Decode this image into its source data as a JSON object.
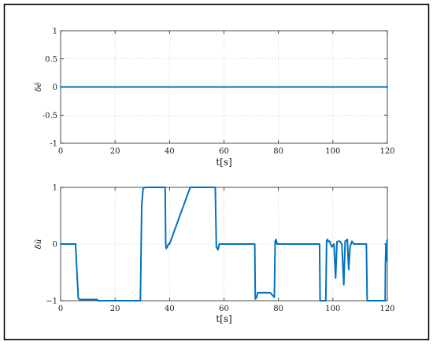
{
  "colors": {
    "series": "#0072BD",
    "frame": "#000000"
  },
  "chart_data": [
    {
      "type": "line",
      "xlabel": "t[s]",
      "ylabel": "δẽ",
      "xlim": [
        0,
        120
      ],
      "ylim": [
        -1,
        1
      ],
      "xticks": [
        0,
        20,
        40,
        60,
        80,
        100,
        120
      ],
      "yticks": [
        -1,
        -0.5,
        0,
        0.5,
        1
      ],
      "ytick_labels": [
        "-1",
        "-0.5",
        "0",
        "0.5",
        "1"
      ],
      "grid": true,
      "series": [
        {
          "x": [
            0,
            120
          ],
          "y": [
            0,
            0
          ]
        }
      ]
    },
    {
      "type": "line",
      "xlabel": "t[s]",
      "ylabel": "δũ",
      "xlim": [
        0,
        120
      ],
      "ylim": [
        -1,
        1
      ],
      "xticks": [
        0,
        20,
        40,
        60,
        80,
        100,
        120
      ],
      "yticks": [
        -1,
        0,
        1
      ],
      "ytick_labels": [
        "−1",
        "0",
        "1"
      ],
      "grid": true,
      "series": [
        {
          "x": [
            0,
            5.5,
            6.0,
            6.5,
            7.0,
            13.5,
            13.7,
            29.3,
            29.8,
            30.3,
            31,
            38.4,
            38.6,
            38.8,
            39.2,
            39.6,
            40,
            47.6,
            48.1,
            56.8,
            57.2,
            57.8,
            58.3,
            71.3,
            71.5,
            72.0,
            72.4,
            76.0,
            77.0,
            78.5,
            78.8,
            79.1,
            79.5,
            95.1,
            95.3,
            97.4,
            97.7,
            98.0,
            98.4,
            98.8,
            99.6,
            100.4,
            101.0,
            101.5,
            102.0,
            102.5,
            103.3,
            104.0,
            104.5,
            105.3,
            105.8,
            106.3,
            107.0,
            107.6,
            112.3,
            112.6,
            119.2,
            119.3,
            119.5,
            119.7,
            119.8,
            120
          ],
          "y": [
            0,
            0,
            -0.5,
            -0.96,
            -0.98,
            -0.98,
            -1,
            -1,
            0.7,
            0.98,
            1,
            1,
            0.0,
            -0.08,
            -0.05,
            0,
            0,
            1,
            1,
            1,
            -0.05,
            -0.1,
            0,
            0,
            -0.97,
            -0.94,
            -0.86,
            -0.86,
            -0.86,
            -0.94,
            0.05,
            0.08,
            0,
            0,
            -1,
            -1,
            0.06,
            0.08,
            0.04,
            0.05,
            -0.05,
            0.0,
            -0.6,
            0.04,
            0.05,
            0.05,
            0.0,
            -0.72,
            0.05,
            0.08,
            -0.45,
            -0.05,
            0.05,
            0,
            0,
            -1,
            -1,
            -0.35,
            0.0,
            -0.3,
            0.05,
            0.07
          ]
        }
      ]
    }
  ]
}
